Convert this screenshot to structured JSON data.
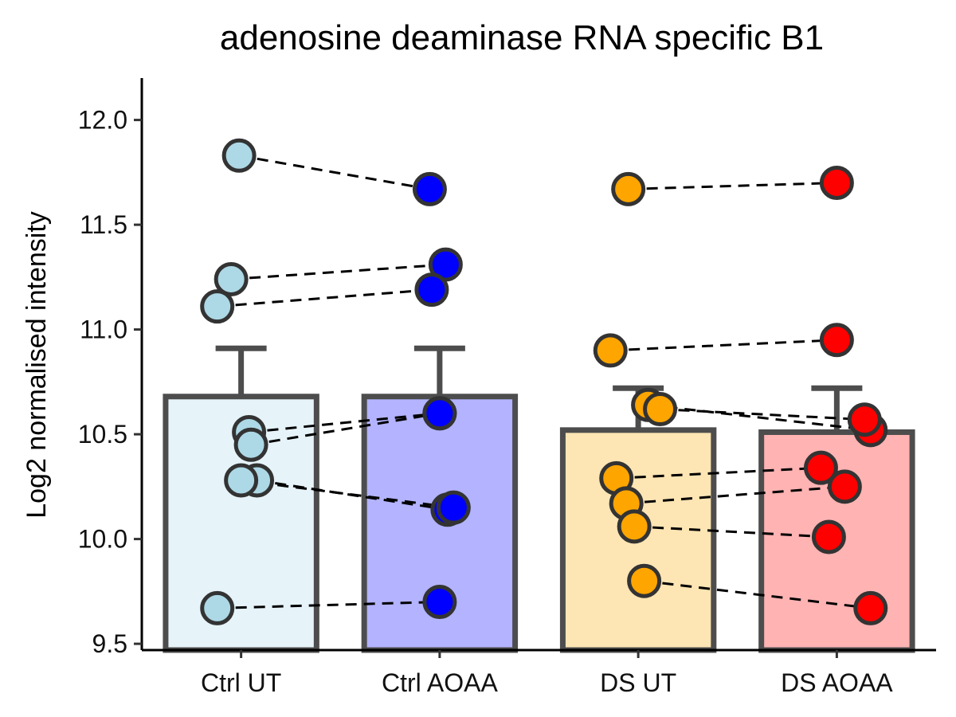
{
  "chart_data": {
    "type": "bar",
    "title": "adenosine deaminase RNA specific B1",
    "xlabel": "",
    "ylabel": "Log2 normalised intensity",
    "ylim": [
      9.47,
      12.2
    ],
    "yticks": [
      "9.5",
      "10.0",
      "10.5",
      "11.0",
      "11.5",
      "12.0"
    ],
    "grid": false,
    "categories": [
      "Ctrl UT",
      "Ctrl AOAA",
      "DS UT",
      "DS AOAA"
    ],
    "bar_values": [
      10.68,
      10.68,
      10.52,
      10.51
    ],
    "error_upper": [
      10.91,
      10.91,
      10.72,
      10.72
    ],
    "bar_fill_colors": [
      "#e6f3f9",
      "#b3b3ff",
      "#fde5b4",
      "#ffb3b3"
    ],
    "point_colors": [
      "#add8e6",
      "#0000ff",
      "#ffa500",
      "#ff0000"
    ],
    "bar_edge_color": "#4d4d4d",
    "paired_points": [
      {
        "ut": 11.83,
        "aoaa": 11.67
      },
      {
        "ut": 11.24,
        "aoaa": 11.31
      },
      {
        "ut": 11.11,
        "aoaa": 11.19
      },
      {
        "ut": 10.51,
        "aoaa": 10.6
      },
      {
        "ut": 10.45,
        "aoaa": 10.6
      },
      {
        "ut": 10.28,
        "aoaa": 10.14
      },
      {
        "ut": 10.28,
        "aoaa": 10.15
      },
      {
        "ut": 9.67,
        "aoaa": 9.7
      },
      {
        "ut": 11.67,
        "aoaa": 11.7
      },
      {
        "ut": 10.9,
        "aoaa": 10.95
      },
      {
        "ut": 10.64,
        "aoaa": 10.52
      },
      {
        "ut": 10.62,
        "aoaa": 10.57
      },
      {
        "ut": 10.29,
        "aoaa": 10.34
      },
      {
        "ut": 10.17,
        "aoaa": 10.25
      },
      {
        "ut": 10.06,
        "aoaa": 10.01
      },
      {
        "ut": 9.8,
        "aoaa": 9.67
      }
    ],
    "pair_groups": [
      [
        0,
        1
      ],
      [
        0,
        1
      ],
      [
        0,
        1
      ],
      [
        0,
        1
      ],
      [
        0,
        1
      ],
      [
        0,
        1
      ],
      [
        0,
        1
      ],
      [
        0,
        1
      ],
      [
        2,
        3
      ],
      [
        2,
        3
      ],
      [
        2,
        3
      ],
      [
        2,
        3
      ],
      [
        2,
        3
      ],
      [
        2,
        3
      ],
      [
        2,
        3
      ],
      [
        2,
        3
      ]
    ],
    "point_jitter": [
      [
        -0.01,
        -0.05
      ],
      [
        -0.05,
        0.03
      ],
      [
        -0.12,
        -0.04
      ],
      [
        0.04,
        0.0
      ],
      [
        0.05,
        0.0
      ],
      [
        0.08,
        0.04
      ],
      [
        0.0,
        0.07
      ],
      [
        -0.12,
        0.0
      ],
      [
        -0.05,
        0.0
      ],
      [
        -0.14,
        0.0
      ],
      [
        0.05,
        0.17
      ],
      [
        0.11,
        0.14
      ],
      [
        -0.11,
        -0.08
      ],
      [
        -0.06,
        0.04
      ],
      [
        -0.02,
        -0.04
      ],
      [
        0.03,
        0.17
      ]
    ]
  }
}
